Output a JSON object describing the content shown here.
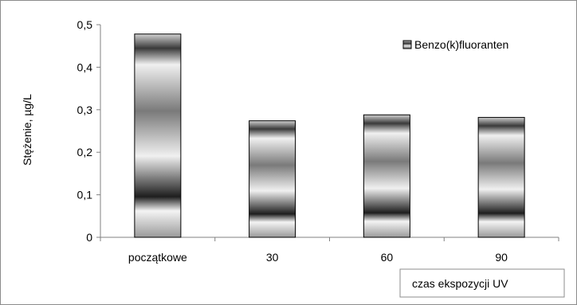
{
  "chart_data": {
    "type": "bar",
    "title": "",
    "categories": [
      "początkowe",
      "30",
      "60",
      "90"
    ],
    "series": [
      {
        "name": "Benzo(k)fluoranten",
        "values": [
          0.478,
          0.274,
          0.288,
          0.282
        ]
      }
    ],
    "xlabel": "czas ekspozycji  UV",
    "ylabel": "Stężenie, µg/L",
    "ylim": [
      0,
      0.5
    ],
    "yticks": [
      "0",
      "0,1",
      "0,2",
      "0,3",
      "0,4",
      "0,5"
    ],
    "grid": false,
    "legend": "top-right",
    "bar_fill": "gradient-gray",
    "colors": {
      "bar_dark": "#2a2a2a",
      "bar_light": "#d8d8d8",
      "axis": "#808080",
      "border": "#000000"
    }
  }
}
